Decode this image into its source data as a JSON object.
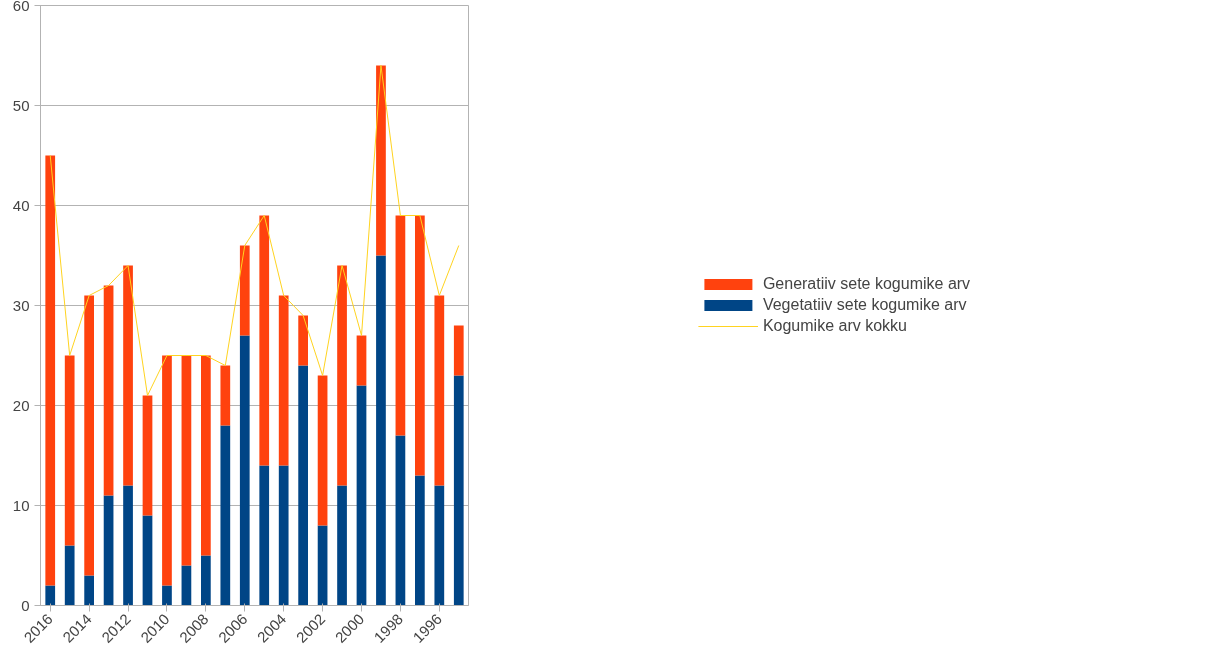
{
  "chart_data": {
    "type": "bar",
    "stacked": true,
    "categories": [
      "2016",
      null,
      "2014",
      null,
      "2012",
      null,
      "2010",
      null,
      "2008",
      null,
      "2006",
      null,
      "2004",
      null,
      "2002",
      null,
      "2000",
      null,
      "1998",
      null,
      "1996",
      null
    ],
    "series": [
      {
        "name": "Vegetatiiv sete kogumike arv",
        "color": "#004586",
        "values": [
          2,
          6,
          3,
          11,
          12,
          9,
          2,
          4,
          5,
          18,
          27,
          14,
          14,
          24,
          8,
          12,
          22,
          35,
          17,
          13,
          12,
          23
        ]
      },
      {
        "name": "Generatiiv sete kogumike arv",
        "color": "#ff420e",
        "values": [
          43,
          19,
          28,
          21,
          22,
          12,
          23,
          21,
          20,
          6,
          9,
          25,
          17,
          5,
          15,
          22,
          5,
          19,
          22,
          26,
          19,
          5
        ]
      },
      {
        "name": "Kogumike arv kokku",
        "type": "line",
        "color": "#ffd320",
        "values": [
          45,
          25,
          31,
          32,
          34,
          21,
          25,
          25,
          25,
          24,
          36,
          39,
          31,
          29,
          23,
          34,
          27,
          54,
          39,
          39,
          31,
          36
        ]
      }
    ],
    "ylim": [
      0,
      60
    ],
    "yticks": [
      0,
      10,
      20,
      30,
      40,
      50,
      60
    ],
    "grid": "y",
    "legend": "right"
  }
}
